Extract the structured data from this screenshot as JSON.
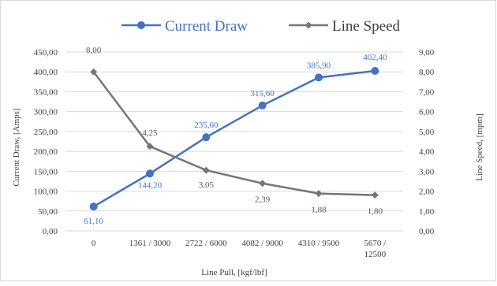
{
  "chart_data": {
    "type": "line",
    "title": "",
    "xlabel": "Line Pull, [kgf/lbf]",
    "ylabel": "Current Draw, [Amps]",
    "y2label": "Line Speed, [mpm]",
    "categories": [
      [
        "0"
      ],
      [
        "1361 / 3000"
      ],
      [
        "2722 / 6000"
      ],
      [
        "4082 / 9000"
      ],
      [
        "4310 / 9500"
      ],
      [
        "5670 /",
        "12500"
      ]
    ],
    "ylim": [
      0,
      450
    ],
    "y2lim": [
      0,
      9
    ],
    "yticks": [
      "0,00",
      "50,00",
      "100,00",
      "150,00",
      "200,00",
      "250,00",
      "300,00",
      "350,00",
      "400,00",
      "450,00"
    ],
    "y2ticks": [
      "0,00",
      "1,00",
      "2,00",
      "3,00",
      "4,00",
      "5,00",
      "6,00",
      "7,00",
      "8,00",
      "9,00"
    ],
    "grid": true,
    "legend_position": "top",
    "series": [
      {
        "name": "Current Draw",
        "axis": "left",
        "color": "#4472c4",
        "marker": "circle",
        "values": [
          61.1,
          144.2,
          235.6,
          315.6,
          385.9,
          402.4
        ],
        "labels": [
          "61,10",
          "144,20",
          "235,60",
          "315,60",
          "385,90",
          "402,40"
        ]
      },
      {
        "name": "Line Speed",
        "axis": "right",
        "color": "#767676",
        "marker": "diamond",
        "values": [
          8.0,
          4.25,
          3.05,
          2.39,
          1.88,
          1.8
        ],
        "labels": [
          "8,00",
          "4,25",
          "3,05",
          "2,39",
          "1,88",
          "1,80"
        ]
      }
    ]
  }
}
